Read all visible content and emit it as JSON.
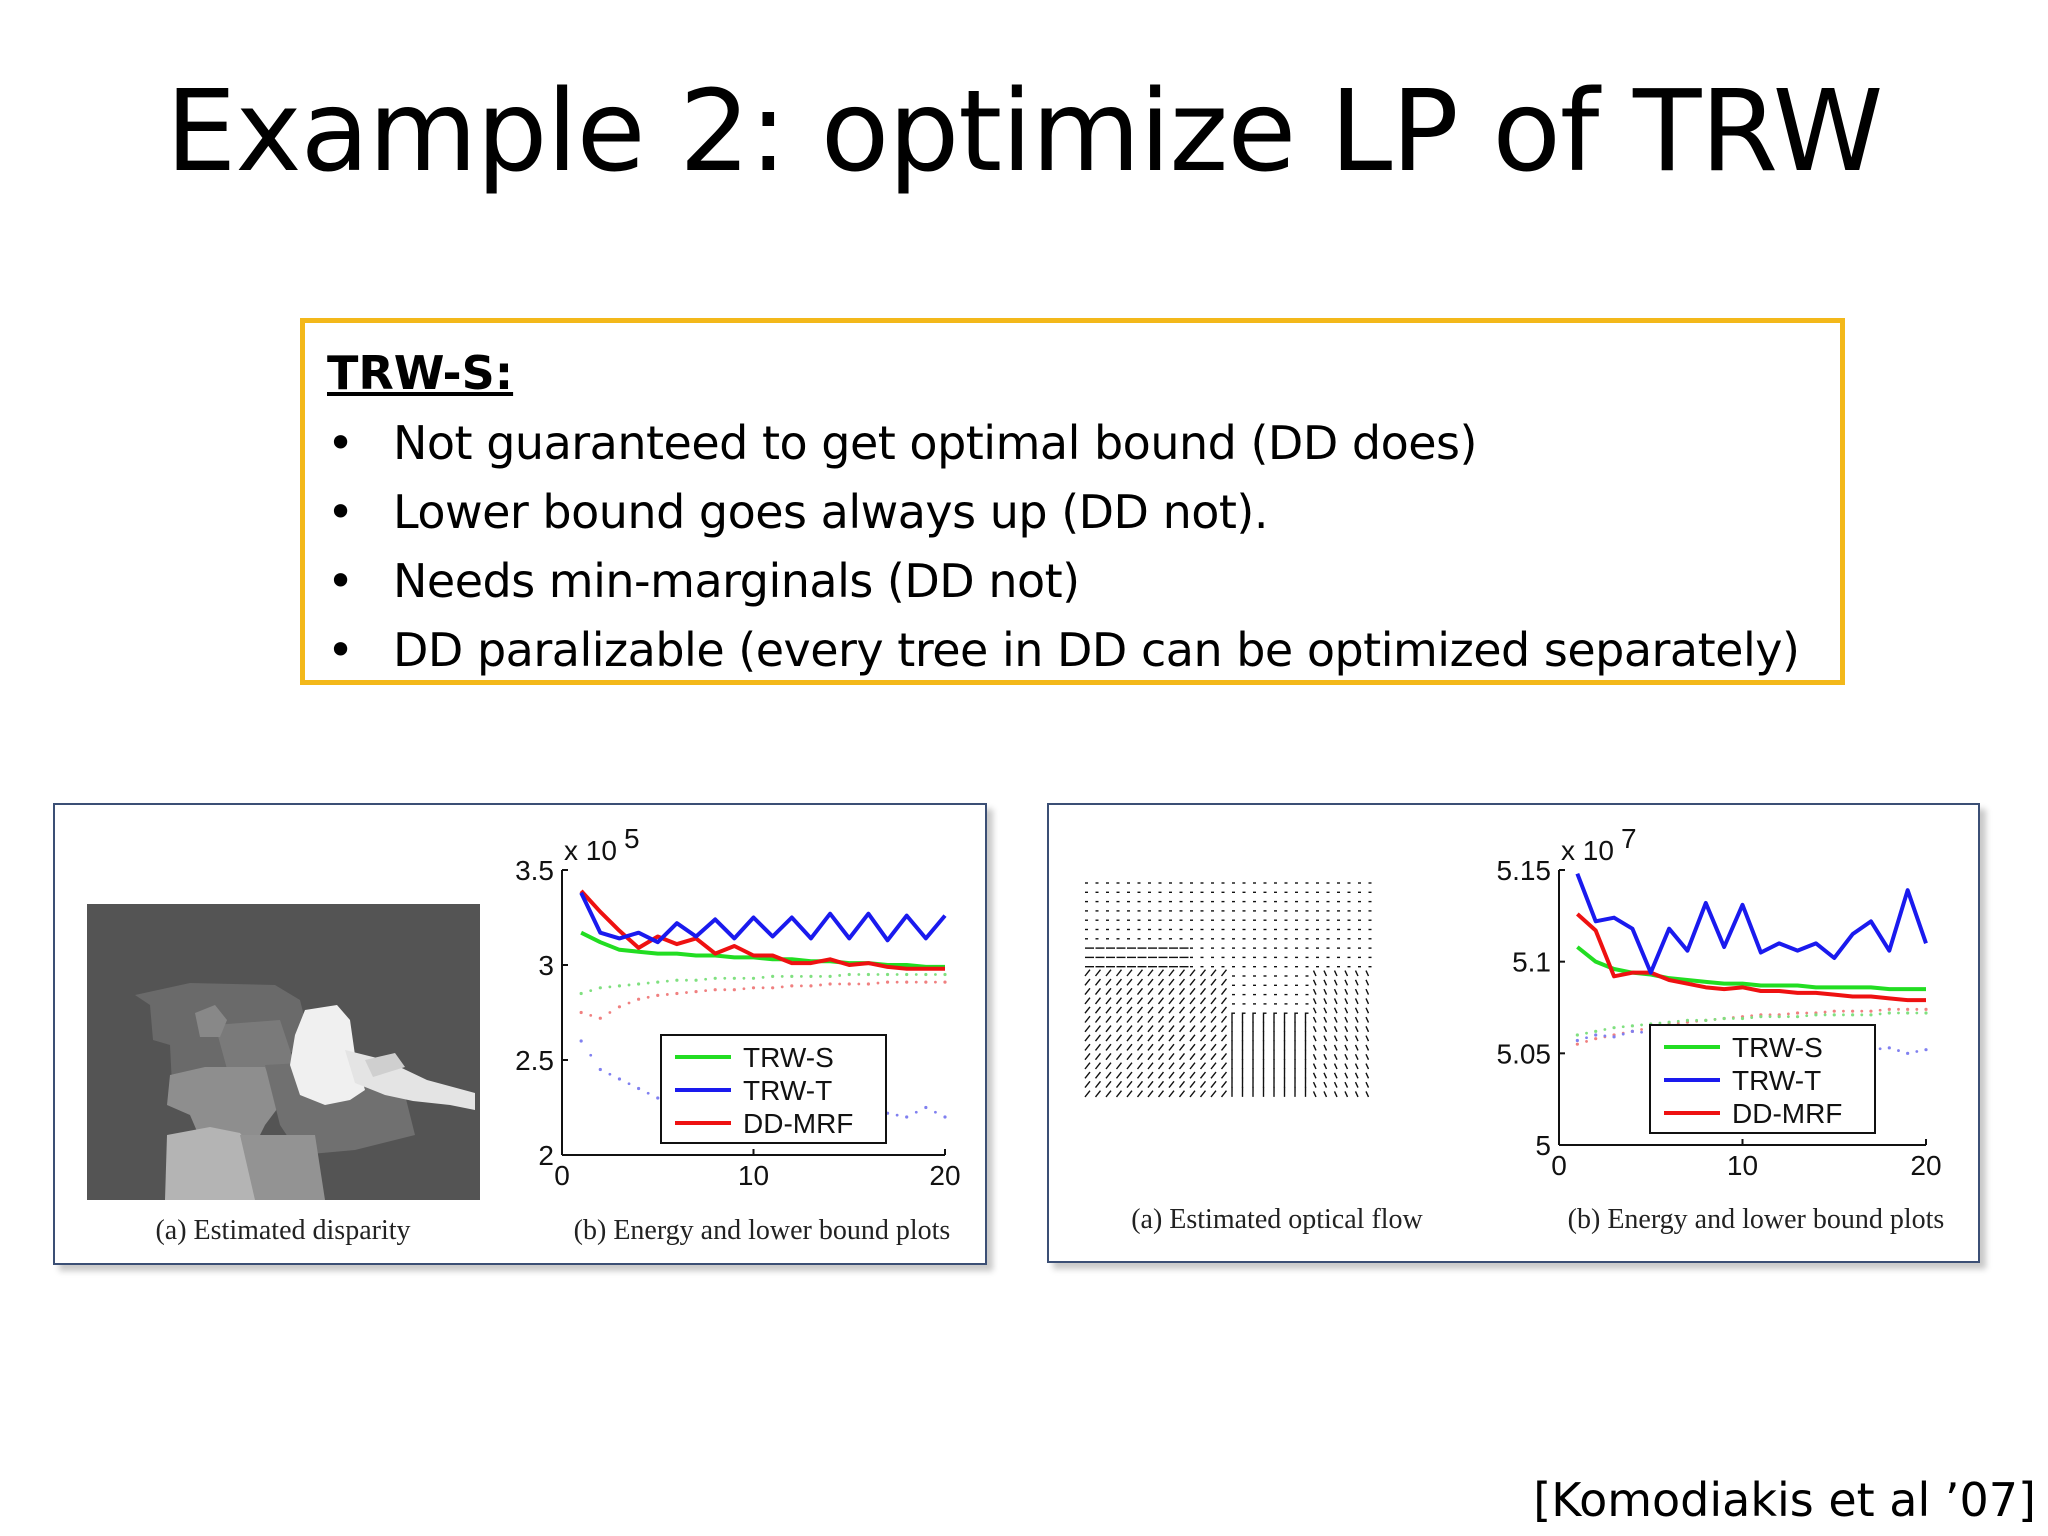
{
  "slide": {
    "title": "Example 2: optimize LP of TRW",
    "citation": "[Komodiakis et al ’07]"
  },
  "callout": {
    "heading": "TRW-S:",
    "bullet_glyph": "•",
    "bullets": [
      "Not guaranteed to get optimal bound (DD does)",
      "Lower bound goes always up (DD not).",
      "Needs min-marginals (DD not)",
      "DD paralizable (every tree in DD can be optimized separately)"
    ],
    "border_color": "#f3b81a"
  },
  "figures": {
    "left": {
      "caption_a": "(a)  Estimated disparity",
      "caption_b": "(b)  Energy and lower bound plots"
    },
    "right": {
      "caption_a": "(a)  Estimated optical flow",
      "caption_b": "(b)  Energy and lower bound plots"
    }
  },
  "chart_data": [
    {
      "type": "line",
      "exponent_label": "x 10",
      "exponent_power": "5",
      "xlim": [
        0,
        20
      ],
      "ylim": [
        2,
        3.5
      ],
      "xticks": [
        0,
        10,
        20
      ],
      "yticks": [
        2,
        2.5,
        3,
        3.5
      ],
      "ytick_labels": [
        "2",
        "2.5",
        "3",
        "3.5"
      ],
      "legend": {
        "position": "lower-center",
        "entries": [
          "TRW-S",
          "TRW-T",
          "DD-MRF"
        ]
      },
      "series": [
        {
          "name": "TRW-S",
          "color": "#22dd22",
          "x": [
            1,
            2,
            3,
            4,
            5,
            6,
            7,
            8,
            9,
            10,
            11,
            12,
            13,
            14,
            15,
            16,
            17,
            18,
            19,
            20
          ],
          "values": [
            3.17,
            3.12,
            3.08,
            3.07,
            3.06,
            3.06,
            3.05,
            3.05,
            3.04,
            3.04,
            3.03,
            3.03,
            3.02,
            3.02,
            3.01,
            3.01,
            3.0,
            3.0,
            2.99,
            2.99
          ]
        },
        {
          "name": "TRW-T",
          "color": "#1a1aee",
          "x": [
            1,
            2,
            3,
            4,
            5,
            6,
            7,
            8,
            9,
            10,
            11,
            12,
            13,
            14,
            15,
            16,
            17,
            18,
            19,
            20
          ],
          "values": [
            3.38,
            3.17,
            3.14,
            3.17,
            3.12,
            3.22,
            3.15,
            3.24,
            3.14,
            3.25,
            3.15,
            3.25,
            3.14,
            3.27,
            3.14,
            3.27,
            3.13,
            3.26,
            3.14,
            3.26
          ]
        },
        {
          "name": "DD-MRF",
          "color": "#ee1111",
          "x": [
            1,
            2,
            3,
            4,
            5,
            6,
            7,
            8,
            9,
            10,
            11,
            12,
            13,
            14,
            15,
            16,
            17,
            18,
            19,
            20
          ],
          "values": [
            3.39,
            3.28,
            3.18,
            3.09,
            3.15,
            3.11,
            3.14,
            3.06,
            3.1,
            3.05,
            3.05,
            3.01,
            3.01,
            3.03,
            3.0,
            3.01,
            2.99,
            2.98,
            2.98,
            2.98
          ]
        }
      ],
      "lower_bound_dotted": [
        {
          "color": "#f08080",
          "x": [
            1,
            2,
            3,
            4,
            5,
            6,
            7,
            8,
            9,
            10,
            11,
            12,
            13,
            14,
            15,
            16,
            17,
            18,
            19,
            20
          ],
          "values": [
            2.75,
            2.72,
            2.78,
            2.82,
            2.84,
            2.85,
            2.86,
            2.87,
            2.87,
            2.88,
            2.88,
            2.89,
            2.89,
            2.9,
            2.9,
            2.9,
            2.91,
            2.91,
            2.91,
            2.91
          ]
        },
        {
          "color": "#80e080",
          "x": [
            1,
            2,
            3,
            4,
            5,
            6,
            7,
            8,
            9,
            10,
            11,
            12,
            13,
            14,
            15,
            16,
            17,
            18,
            19,
            20
          ],
          "values": [
            2.85,
            2.88,
            2.89,
            2.9,
            2.91,
            2.92,
            2.92,
            2.93,
            2.93,
            2.93,
            2.94,
            2.94,
            2.94,
            2.94,
            2.95,
            2.95,
            2.95,
            2.95,
            2.95,
            2.95
          ]
        },
        {
          "color": "#8080f0",
          "x": [
            1,
            2,
            3,
            4,
            5,
            6,
            7,
            8,
            9,
            10,
            11,
            12,
            13,
            14,
            15,
            16,
            17,
            18,
            19,
            20
          ],
          "values": [
            2.6,
            2.45,
            2.4,
            2.35,
            2.3,
            2.35,
            2.3,
            2.28,
            2.25,
            2.22,
            2.25,
            2.2,
            2.2,
            2.22,
            2.2,
            2.25,
            2.22,
            2.2,
            2.25,
            2.2
          ]
        }
      ]
    },
    {
      "type": "line",
      "exponent_label": "x 10",
      "exponent_power": "7",
      "xlim": [
        0,
        20
      ],
      "ylim": [
        5,
        5.15
      ],
      "xticks": [
        0,
        10,
        20
      ],
      "yticks": [
        5,
        5.05,
        5.1,
        5.15
      ],
      "ytick_labels": [
        "5",
        "5.05",
        "5.1",
        "5.15"
      ],
      "legend": {
        "position": "lower-center",
        "entries": [
          "TRW-S",
          "TRW-T",
          "DD-MRF"
        ]
      },
      "series": [
        {
          "name": "TRW-S",
          "color": "#22dd22",
          "x": [
            1,
            2,
            3,
            4,
            5,
            6,
            7,
            8,
            9,
            10,
            11,
            12,
            13,
            14,
            15,
            16,
            17,
            18,
            19,
            20
          ],
          "values": [
            5.108,
            5.1,
            5.096,
            5.094,
            5.093,
            5.091,
            5.09,
            5.089,
            5.088,
            5.088,
            5.087,
            5.087,
            5.087,
            5.086,
            5.086,
            5.086,
            5.086,
            5.085,
            5.085,
            5.085
          ]
        },
        {
          "name": "TRW-T",
          "color": "#1a1aee",
          "x": [
            1,
            2,
            3,
            4,
            5,
            6,
            7,
            8,
            9,
            10,
            11,
            12,
            13,
            14,
            15,
            16,
            17,
            18,
            19,
            20
          ],
          "values": [
            5.148,
            5.122,
            5.124,
            5.118,
            5.094,
            5.118,
            5.106,
            5.132,
            5.108,
            5.131,
            5.105,
            5.11,
            5.106,
            5.11,
            5.102,
            5.115,
            5.122,
            5.106,
            5.139,
            5.11
          ]
        },
        {
          "name": "DD-MRF",
          "color": "#ee1111",
          "x": [
            1,
            2,
            3,
            4,
            5,
            6,
            7,
            8,
            9,
            10,
            11,
            12,
            13,
            14,
            15,
            16,
            17,
            18,
            19,
            20
          ],
          "values": [
            5.126,
            5.117,
            5.092,
            5.094,
            5.094,
            5.09,
            5.088,
            5.086,
            5.085,
            5.086,
            5.084,
            5.084,
            5.083,
            5.083,
            5.082,
            5.081,
            5.081,
            5.08,
            5.079,
            5.079
          ]
        }
      ],
      "lower_bound_dotted": [
        {
          "color": "#f08080",
          "x": [
            1,
            2,
            3,
            4,
            5,
            6,
            7,
            8,
            9,
            10,
            11,
            12,
            13,
            14,
            15,
            16,
            17,
            18,
            19,
            20
          ],
          "values": [
            5.055,
            5.058,
            5.06,
            5.062,
            5.064,
            5.066,
            5.067,
            5.068,
            5.069,
            5.07,
            5.071,
            5.071,
            5.072,
            5.072,
            5.073,
            5.073,
            5.073,
            5.074,
            5.074,
            5.074
          ]
        },
        {
          "color": "#80e080",
          "x": [
            1,
            2,
            3,
            4,
            5,
            6,
            7,
            8,
            9,
            10,
            11,
            12,
            13,
            14,
            15,
            16,
            17,
            18,
            19,
            20
          ],
          "values": [
            5.06,
            5.062,
            5.064,
            5.065,
            5.066,
            5.067,
            5.068,
            5.068,
            5.069,
            5.069,
            5.07,
            5.07,
            5.07,
            5.071,
            5.071,
            5.071,
            5.071,
            5.072,
            5.072,
            5.072
          ]
        },
        {
          "color": "#8080f0",
          "x": [
            1,
            2,
            3,
            4,
            5,
            6,
            7,
            8,
            9,
            10,
            11,
            12,
            13,
            14,
            15,
            16,
            17,
            18,
            19,
            20
          ],
          "values": [
            5.057,
            5.06,
            5.059,
            5.062,
            5.061,
            5.063,
            5.06,
            5.062,
            5.058,
            5.06,
            5.056,
            5.058,
            5.055,
            5.056,
            5.053,
            5.054,
            5.052,
            5.053,
            5.05,
            5.052
          ]
        }
      ]
    }
  ]
}
